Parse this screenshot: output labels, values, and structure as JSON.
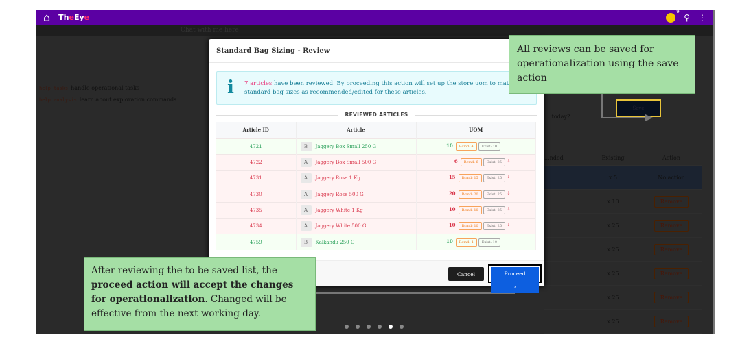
{
  "topbar": {
    "brand_prefix": "Th",
    "brand_e": "e",
    "brand_mid": "Ey",
    "brand_end": "e",
    "notif_count": "9"
  },
  "background": {
    "chat_hint": "Chat with me here",
    "help": [
      {
        "cmd": "help tasks",
        "desc": "handle operational tasks"
      },
      {
        "cmd": "help analysis",
        "desc": "learn about exploration commands"
      }
    ],
    "question": "...today?",
    "save_label": "Save",
    "headers": [
      "...nded",
      "Existing",
      "Action"
    ],
    "rows": [
      {
        "existing": "x 5",
        "action": "No action"
      },
      {
        "existing": "x 10",
        "action": "Remove"
      },
      {
        "existing": "x 25",
        "action": "Remove"
      },
      {
        "existing": "x 25",
        "action": "Remove"
      },
      {
        "existing": "x 25",
        "action": "Remove"
      },
      {
        "existing": "x 25",
        "action": "Remove"
      },
      {
        "existing": "x 25",
        "action": "Remove"
      }
    ]
  },
  "modal": {
    "title": "Standard Bag Sizing - Review",
    "info_link": "7 articles",
    "info_text": " have been reviewed. By proceeding this action will set up the store uom to match standard bag sizes as recommended/edited for these articles.",
    "section": "REVIEWED ARTICLES",
    "columns": [
      "Article ID",
      "Article",
      "UOM"
    ],
    "rows": [
      {
        "id": "4721",
        "level": "B",
        "name": "Jaggery Box Small 250 G",
        "uom": "10",
        "rcmd": "Rcmd: 4",
        "exist": "Exist: 10",
        "status": "g"
      },
      {
        "id": "4722",
        "level": "A",
        "name": "Jaggery Box Small 500 G",
        "uom": "6",
        "rcmd": "Rcmd: 6",
        "exist": "Exist: 25",
        "status": "r"
      },
      {
        "id": "4731",
        "level": "A",
        "name": "Jaggery Rose 1 Kg",
        "uom": "15",
        "rcmd": "Rcmd: 15",
        "exist": "Exist: 25",
        "status": "r"
      },
      {
        "id": "4730",
        "level": "A",
        "name": "Jaggery Rose 500 G",
        "uom": "20",
        "rcmd": "Rcmd: 20",
        "exist": "Exist: 25",
        "status": "r"
      },
      {
        "id": "4735",
        "level": "A",
        "name": "Jaggery White 1 Kg",
        "uom": "10",
        "rcmd": "Rcmd: 10",
        "exist": "Exist: 25",
        "status": "r"
      },
      {
        "id": "4734",
        "level": "A",
        "name": "Jaggery White 500 G",
        "uom": "10",
        "rcmd": "Rcmd: 10",
        "exist": "Exist: 25",
        "status": "r"
      },
      {
        "id": "4759",
        "level": "B",
        "name": "Kalkandu 250 G",
        "uom": "10",
        "rcmd": "Rcmd: 4",
        "exist": "Exist: 10",
        "status": "g"
      }
    ],
    "cancel": "Cancel",
    "proceed": "Proceed"
  },
  "callouts": {
    "save": "All reviews can be saved for operationalization using the save action",
    "proceed_a": "After reviewing the to be saved list,  the ",
    "proceed_bold": "proceed action will accept the changes for operationalization",
    "proceed_b": ". Changed will be effective from the next working day."
  },
  "colors": {
    "topbar": "#5b00a3",
    "proceed": "#0d5fe0",
    "callout": "#a5dfa5",
    "increase": "#2aa05a",
    "decrease": "#d9364b"
  }
}
